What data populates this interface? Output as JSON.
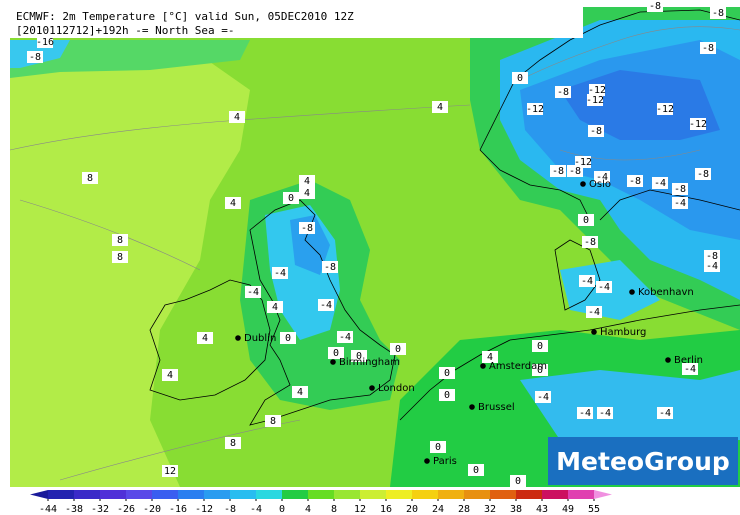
{
  "header": {
    "title": "ECMWF: 2m Temperature [°C] valid Sun, 05DEC2010 12Z",
    "subtitle": "[2010112712]+192h -= North Sea =-"
  },
  "cities": [
    "Oslo",
    "Kobenhavn",
    "Hamburg",
    "Berlin",
    "Amsterdam",
    "Brussel",
    "Paris",
    "London",
    "Birmingham",
    "Dublin"
  ],
  "contour_labels": [
    -8,
    -16,
    4,
    4,
    8,
    8,
    8,
    4,
    4,
    4,
    0,
    -8,
    -8,
    -4,
    -4,
    4,
    -4,
    -4,
    0,
    0,
    0,
    0,
    4,
    0,
    0,
    0,
    0,
    -4,
    -4,
    -4,
    -4,
    -4,
    0,
    -8,
    -12,
    -12,
    -12,
    -8,
    -8,
    -12,
    -12,
    -12,
    -8,
    -8,
    -4,
    -8,
    -4,
    -8,
    -4,
    -8,
    0,
    -8,
    -4,
    -4,
    -4,
    -8,
    -4,
    0,
    0,
    0,
    12,
    8,
    8,
    4,
    4,
    4,
    -8,
    -8
  ],
  "logo": "MeteoGroup",
  "color_scale": {
    "ticks": [
      -44,
      -38,
      -32,
      -26,
      -20,
      -16,
      -12,
      -8,
      -4,
      0,
      4,
      8,
      12,
      16,
      20,
      24,
      28,
      32,
      38,
      43,
      49,
      55
    ],
    "colors": [
      "#1a1a9a",
      "#2222b0",
      "#3a2ac8",
      "#5030d8",
      "#5a48e8",
      "#3a5ef0",
      "#2a7ef0",
      "#2a9cf0",
      "#28bdf0",
      "#2ad8e0",
      "#22cc44",
      "#66dd22",
      "#99e633",
      "#ccee33",
      "#eeee22",
      "#f5d010",
      "#f0b010",
      "#e89010",
      "#e06010",
      "#cc2a10",
      "#cc1060",
      "#e040b0",
      "#f090e0"
    ]
  }
}
